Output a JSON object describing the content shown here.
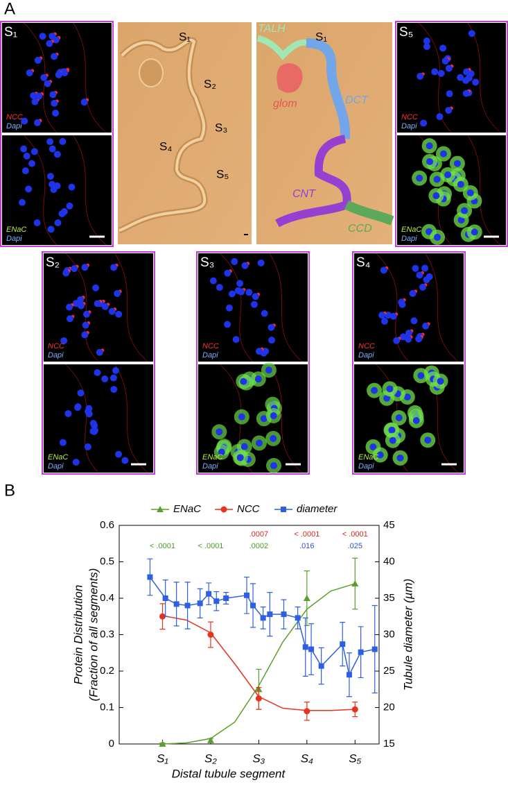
{
  "panel_labels": [
    "A",
    "B"
  ],
  "image_panels": [
    {
      "label": "S₁",
      "upper": {
        "marker": "NCC",
        "counter": "Dapi"
      },
      "lower": {
        "marker": "ENaC",
        "counter": "Dapi"
      }
    },
    {
      "label": "S₅",
      "upper": {
        "marker": "NCC",
        "counter": "Dapi"
      },
      "lower": {
        "marker": "ENaC",
        "counter": "Dapi"
      }
    },
    {
      "label": "S₂",
      "upper": {
        "marker": "NCC",
        "counter": "Dapi"
      },
      "lower": {
        "marker": "ENaC",
        "counter": "Dapi"
      }
    },
    {
      "label": "S₃",
      "upper": {
        "marker": "NCC",
        "counter": "Dapi"
      },
      "lower": {
        "marker": "ENaC",
        "counter": "Dapi"
      }
    },
    {
      "label": "S₄",
      "upper": {
        "marker": "NCC",
        "counter": "Dapi"
      },
      "lower": {
        "marker": "ENaC",
        "counter": "Dapi"
      }
    }
  ],
  "dic_image": {
    "segment_labels": [
      "S₁",
      "S₂",
      "S₃",
      "S₄",
      "S₅"
    ]
  },
  "map_image": {
    "segment_label": "S₁",
    "regions": [
      "TALH",
      "glom",
      "DCT",
      "CNT",
      "CCD"
    ]
  },
  "chart_data": {
    "type": "line",
    "xlabel": "Distal tubule segment",
    "ylabel": [
      "Protein Distribution",
      "(Fraction of all segments)"
    ],
    "y2label": "Tubule diameter  (µm)",
    "xlim": [
      0.1,
      5.5
    ],
    "xticks": [
      {
        "value": 1,
        "label": "S₁"
      },
      {
        "value": 2,
        "label": "S₂"
      },
      {
        "value": 3,
        "label": "S₃"
      },
      {
        "value": 4,
        "label": "S₄"
      },
      {
        "value": 5,
        "label": "S₅"
      }
    ],
    "ylim": [
      0,
      0.6
    ],
    "yticks": [
      0,
      0.1,
      0.2,
      0.3,
      0.4,
      0.5,
      0.6
    ],
    "y2lim": [
      15,
      45
    ],
    "y2ticks": [
      15,
      20,
      25,
      30,
      35,
      40,
      45
    ],
    "series": [
      {
        "name": "ENaC",
        "color": "#5a9e2f",
        "marker": "triangle",
        "x": [
          1,
          2,
          3,
          4,
          5
        ],
        "values": [
          0.0,
          0.01,
          0.15,
          0.4,
          0.44
        ],
        "errors": [
          0.003,
          0.005,
          0.055,
          0.075,
          0.07
        ],
        "fit": {
          "x": [
            1,
            1.5,
            2,
            2.5,
            3,
            3.5,
            4,
            4.5,
            5
          ],
          "values": [
            0.0,
            0.003,
            0.015,
            0.06,
            0.16,
            0.28,
            0.37,
            0.42,
            0.44
          ]
        },
        "p_values": [
          "< .0001",
          "< .0001",
          ".0002",
          null,
          null
        ],
        "p_color": "#4a9a2a"
      },
      {
        "name": "NCC",
        "color": "#e8321e",
        "marker": "circle",
        "x": [
          1,
          2,
          3,
          4,
          5
        ],
        "values": [
          0.35,
          0.3,
          0.125,
          0.09,
          0.095
        ],
        "errors": [
          0.035,
          0.035,
          0.03,
          0.025,
          0.02
        ],
        "fit": {
          "x": [
            1,
            1.5,
            2,
            2.5,
            3,
            3.5,
            4,
            4.5,
            5
          ],
          "values": [
            0.352,
            0.34,
            0.305,
            0.22,
            0.13,
            0.098,
            0.092,
            0.092,
            0.095
          ]
        },
        "p_values": [
          null,
          null,
          ".0007",
          "< .0001",
          "< .0001"
        ],
        "p_color": "#d8261b"
      },
      {
        "name": "diameter",
        "color": "#2e5fe0",
        "marker": "square",
        "axis": "y2",
        "x": [
          0.74,
          1.06,
          1.29,
          1.52,
          1.78,
          1.96,
          2.12,
          2.32,
          2.75,
          2.88,
          3.09,
          3.23,
          3.52,
          3.81,
          3.97,
          4.09,
          4.3,
          4.74,
          4.88,
          5.12,
          5.41
        ],
        "values": [
          37.9,
          35.0,
          34.2,
          34.0,
          34.3,
          35.6,
          34.6,
          35.0,
          35.4,
          34.0,
          32.3,
          32.8,
          32.8,
          32.3,
          28.3,
          28.0,
          25.7,
          28.7,
          24.5,
          27.6,
          28.0
        ],
        "errors": [
          2.5,
          2.5,
          3.0,
          3.2,
          2.0,
          1.5,
          1.3,
          0.8,
          2.5,
          3.0,
          1.5,
          3.0,
          2.0,
          1.5,
          4.0,
          3.5,
          2.5,
          3.0,
          3.0,
          3.5,
          6.0
        ],
        "p_values": [
          null,
          null,
          null,
          ".016",
          ".025"
        ],
        "p_color": "#2a50d8"
      }
    ]
  }
}
